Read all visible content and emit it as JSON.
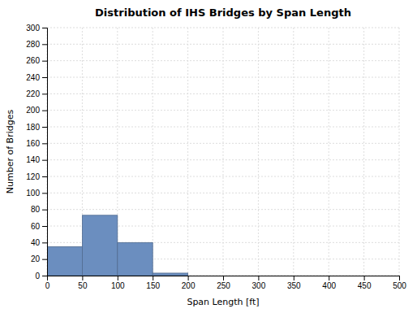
{
  "chart_data": {
    "type": "histogram",
    "title": "Distribution of IHS Bridges by Span Length",
    "xlabel": "Span Length [ft]",
    "ylabel": "Number of Bridges",
    "bins": [
      0,
      50,
      100,
      150,
      200,
      250,
      300,
      350,
      400,
      450,
      500
    ],
    "values": [
      35,
      73,
      40,
      3,
      0,
      0,
      0,
      0,
      0,
      0
    ],
    "color": "#6b8ebf",
    "xlim": [
      0,
      500
    ],
    "ylim": [
      0,
      300
    ],
    "xticks": [
      0,
      50,
      100,
      150,
      200,
      250,
      300,
      350,
      400,
      450,
      500
    ],
    "yticks": [
      0,
      20,
      40,
      60,
      80,
      100,
      120,
      140,
      160,
      180,
      200,
      220,
      240,
      260,
      280,
      300
    ],
    "grid": true
  }
}
